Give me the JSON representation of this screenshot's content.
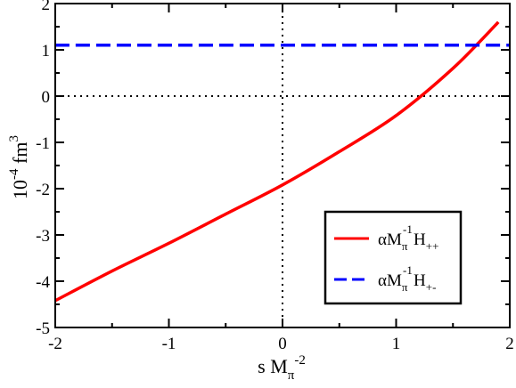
{
  "chart_data": {
    "type": "line",
    "xlim": [
      -2,
      2
    ],
    "ylim": [
      -5,
      2
    ],
    "x_ticks": [
      "-2",
      "-1",
      "0",
      "1",
      "2"
    ],
    "y_ticks": [
      "-5",
      "-4",
      "-3",
      "-2",
      "-1",
      "0",
      "1",
      "2"
    ],
    "xlabel": {
      "base": "s M",
      "sub": "π",
      "sup": "-2"
    },
    "ylabel": {
      "base": "10",
      "sup": "-4",
      "unit": " fm",
      "unit_sup": "3"
    },
    "reference_lines": [
      {
        "orientation": "vertical",
        "value": 0,
        "style": "dotted"
      },
      {
        "orientation": "horizontal",
        "value": 0,
        "style": "dotted"
      }
    ],
    "legend_position": "lower-right",
    "series": [
      {
        "label": {
          "a": "αM",
          "sub": "π",
          "sup": "-1",
          "h": "H",
          "hsub": "++"
        },
        "color": "#ff0000",
        "style": "solid",
        "x": [
          -2.0,
          -1.5,
          -1.0,
          -0.5,
          0.0,
          0.5,
          1.0,
          1.5,
          1.9
        ],
        "y": [
          -4.42,
          -3.78,
          -3.18,
          -2.55,
          -1.92,
          -1.2,
          -0.42,
          0.6,
          1.6
        ]
      },
      {
        "label": {
          "a": "αM",
          "sub": "π",
          "sup": "-1",
          "h": "H",
          "hsub": "+-"
        },
        "color": "#0000ff",
        "style": "dashed",
        "x": [
          -2.0,
          2.0
        ],
        "y": [
          1.1,
          1.1
        ]
      }
    ]
  }
}
